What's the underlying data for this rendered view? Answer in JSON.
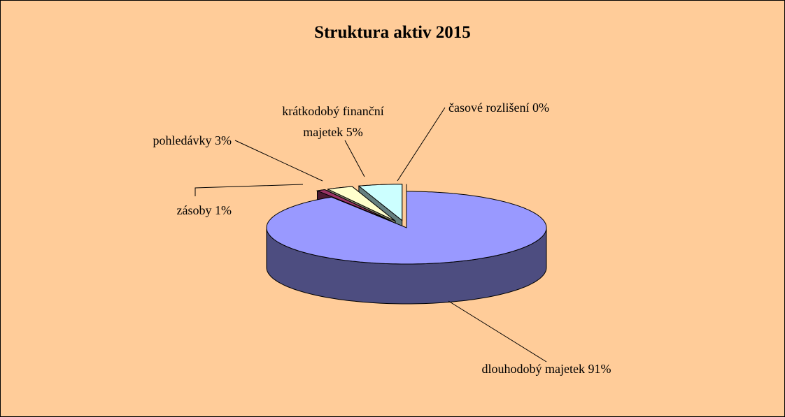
{
  "chart_data": {
    "type": "pie3d",
    "title": "Struktura aktiv 2015",
    "categories": [
      "dlouhodobý majetek",
      "zásoby",
      "pohledávky",
      "krátkodobý finanční majetek",
      "časové rozlišení"
    ],
    "values": [
      91,
      1,
      3,
      5,
      0
    ],
    "value_labels": [
      "91%",
      "1%",
      "3%",
      "5%",
      "0%"
    ],
    "colors": [
      "#9999ff",
      "#993366",
      "#ffffcc",
      "#ccffff",
      "#660066"
    ]
  }
}
